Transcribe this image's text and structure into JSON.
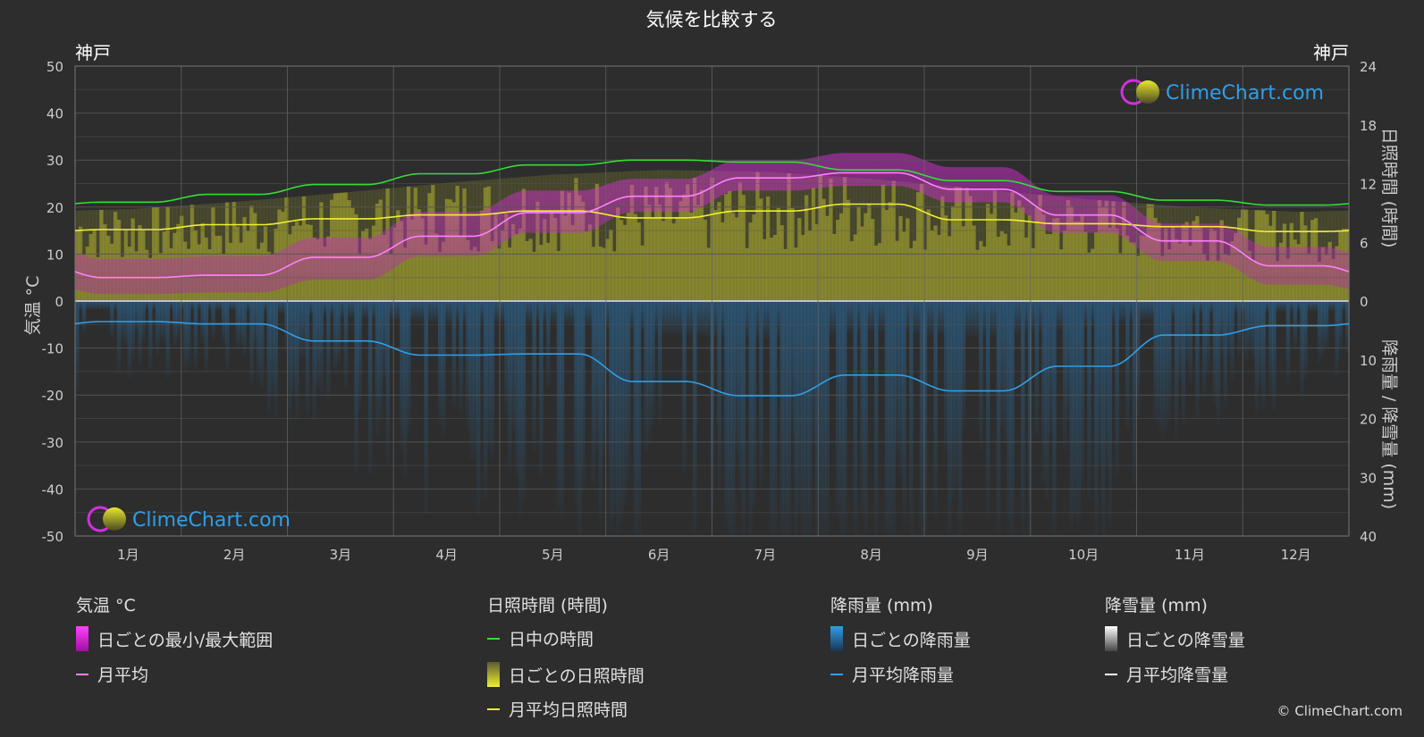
{
  "title": "気候を比較する",
  "city_left": "神戸",
  "city_right": "神戸",
  "left_axis_label": "気温 °C",
  "right_axis_label_top": "日照時間 (時間)",
  "right_axis_label_bottom": "降雨量 / 降雪量 (mm)",
  "watermark": "ClimeChart.com",
  "copyright": "© ClimeChart.com",
  "colors": {
    "background": "#2d2d2d",
    "grid": "#555555",
    "temp_range": "#e020e0",
    "temp_avg": "#ff80ff",
    "daylight": "#33dd33",
    "sunshine_fill": "#b0b030",
    "sunshine_avg": "#f0f030",
    "rain_fill": "#2a6a9a",
    "rain_avg": "#2f9fe8",
    "snow_avg": "#ffffff",
    "brand": "#2f9fe8"
  },
  "legend": {
    "temp": {
      "title": "気温 °C",
      "range": "日ごとの最小/最大範囲",
      "avg": "月平均"
    },
    "sun": {
      "title": "日照時間 (時間)",
      "daylight": "日中の時間",
      "daily": "日ごとの日照時間",
      "avg": "月平均日照時間"
    },
    "rain": {
      "title": "降雨量 (mm)",
      "daily": "日ごとの降雨量",
      "avg": "月平均降雨量"
    },
    "snow": {
      "title": "降雪量 (mm)",
      "daily": "日ごとの降雪量",
      "avg": "月平均降雪量"
    }
  },
  "chart_data": {
    "type": "area",
    "categories": [
      "1月",
      "2月",
      "3月",
      "4月",
      "5月",
      "6月",
      "7月",
      "8月",
      "9月",
      "10月",
      "11月",
      "12月"
    ],
    "y_left": {
      "label": "気温 °C",
      "ylim": [
        -50,
        50
      ],
      "ticks": [
        50,
        40,
        30,
        20,
        10,
        0,
        -10,
        -20,
        -30,
        -40,
        -50
      ]
    },
    "y_right_top": {
      "label": "日照時間 (時間)",
      "ylim": [
        0,
        24
      ],
      "ticks": [
        24,
        18,
        12,
        6,
        0
      ]
    },
    "y_right_bottom": {
      "label": "降雨量 / 降雪量 (mm)",
      "ylim": [
        0,
        40
      ],
      "ticks": [
        0,
        10,
        20,
        30,
        40
      ]
    },
    "grid": true,
    "series": [
      {
        "name": "日中の時間",
        "unit": "hours",
        "values": [
          10.1,
          10.9,
          11.9,
          13.0,
          13.9,
          14.4,
          14.2,
          13.4,
          12.3,
          11.2,
          10.3,
          9.8
        ]
      },
      {
        "name": "月平均日照時間",
        "unit": "hours",
        "values": [
          7.3,
          7.8,
          8.4,
          8.8,
          9.2,
          8.5,
          9.2,
          9.9,
          8.3,
          7.9,
          7.6,
          7.1
        ]
      },
      {
        "name": "日ごとの最小/最大範囲",
        "unit": "°C",
        "min": [
          1.5,
          1.8,
          4.5,
          9.5,
          14.5,
          19.0,
          23.5,
          24.5,
          21.0,
          14.5,
          8.5,
          3.5
        ],
        "max": [
          9.0,
          9.5,
          13.5,
          19.0,
          23.5,
          26.0,
          30.0,
          31.5,
          28.5,
          22.5,
          16.5,
          11.5
        ]
      },
      {
        "name": "月平均",
        "unit": "°C",
        "values": [
          5.0,
          5.5,
          9.3,
          13.8,
          18.8,
          22.3,
          26.2,
          27.3,
          23.8,
          18.3,
          12.8,
          7.5
        ]
      },
      {
        "name": "月平均降雨量",
        "unit": "mm",
        "values": [
          3.5,
          3.9,
          6.8,
          9.2,
          9.0,
          13.7,
          16.1,
          12.6,
          15.3,
          11.1,
          5.8,
          4.2
        ]
      },
      {
        "name": "月平均降雪量",
        "unit": "mm",
        "values": [
          0.1,
          0.1,
          0,
          0,
          0,
          0,
          0,
          0,
          0,
          0,
          0,
          0
        ]
      }
    ]
  }
}
